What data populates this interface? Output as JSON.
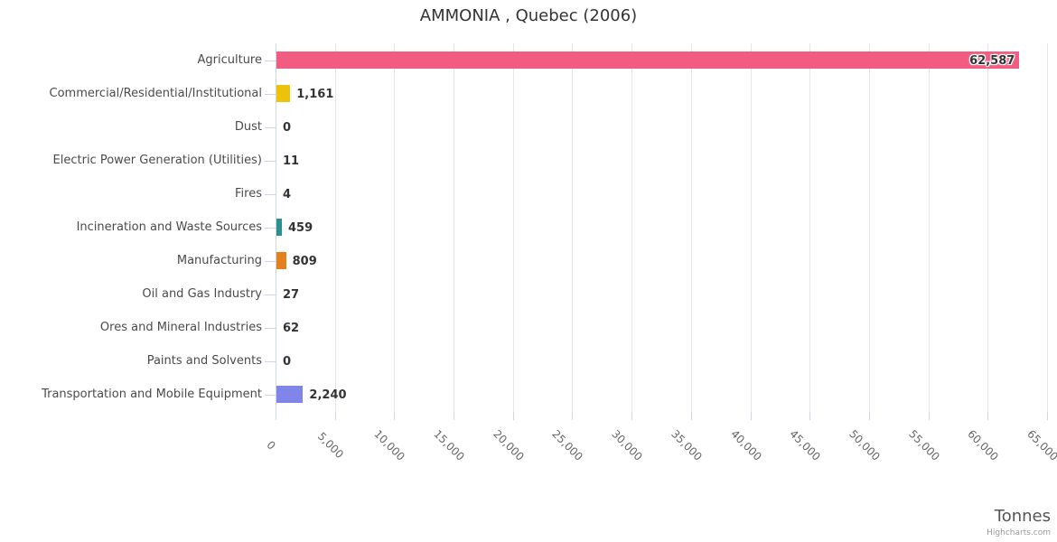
{
  "credit": "Highcharts.com",
  "chart_data": {
    "type": "bar",
    "orientation": "horizontal",
    "title": "AMMONIA , Quebec (2006)",
    "categories": [
      "Agriculture",
      "Commercial/Residential/Institutional",
      "Dust",
      "Electric Power Generation (Utilities)",
      "Fires",
      "Incineration and Waste Sources",
      "Manufacturing",
      "Oil and Gas Industry",
      "Ores and Mineral Industries",
      "Paints and Solvents",
      "Transportation and Mobile Equipment"
    ],
    "values": [
      62587,
      1161,
      0,
      11,
      4,
      459,
      809,
      27,
      62,
      0,
      2240
    ],
    "value_labels": [
      "62,587",
      "1,161",
      "0",
      "11",
      "4",
      "459",
      "809",
      "27",
      "62",
      "0",
      "2,240"
    ],
    "bar_colors": [
      "#f15c80",
      "#eec10a",
      "#999999",
      "#999999",
      "#999999",
      "#2b908f",
      "#e5801c",
      "#999999",
      "#999999",
      "#999999",
      "#8085e9"
    ],
    "xlabel": "Tonnes",
    "xlim": [
      0,
      65000
    ],
    "tick_interval": 5000,
    "tick_labels": [
      "0",
      "5,000",
      "10,000",
      "15,000",
      "20,000",
      "25,000",
      "30,000",
      "35,000",
      "40,000",
      "45,000",
      "50,000",
      "55,000",
      "60,000",
      "65,000"
    ],
    "grid": true,
    "legend": false,
    "styles": {
      "background": "#ffffff",
      "grid_color": "#e6e6e6",
      "axis_color": "#ccd6eb",
      "label_color": "#4a4a4a",
      "tick_label_color": "#666666",
      "value_label_color": "#333333",
      "title_color": "#333333",
      "axis_title_color": "#555555",
      "credit_color": "#999999"
    }
  }
}
